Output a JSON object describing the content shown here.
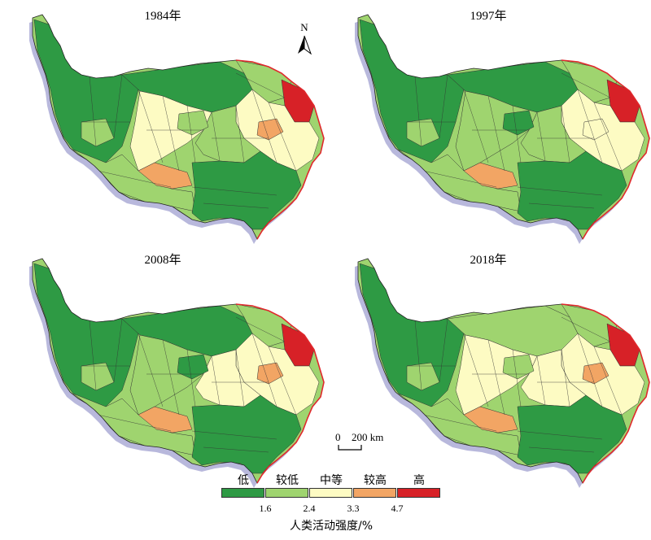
{
  "panels": [
    {
      "year_label": "1984年"
    },
    {
      "year_label": "1997年"
    },
    {
      "year_label": "2008年"
    },
    {
      "year_label": "2018年"
    }
  ],
  "north_arrow": {
    "label": "N"
  },
  "scale_bar": {
    "label_left": "0",
    "label_right": "200 km"
  },
  "legend": {
    "title": "人类活动强度/%",
    "categories": [
      "低",
      "较低",
      "中等",
      "较高",
      "高"
    ],
    "thresholds": [
      "1.6",
      "2.4",
      "3.3",
      "4.7"
    ],
    "colors": [
      "#2e9a44",
      "#9fd46f",
      "#fdfbc3",
      "#f2a564",
      "#d72127"
    ]
  },
  "map_style": {
    "boundary_color": "#e0282c",
    "shadow_color": "#b8b8dc",
    "district_line_color": "#333333"
  }
}
